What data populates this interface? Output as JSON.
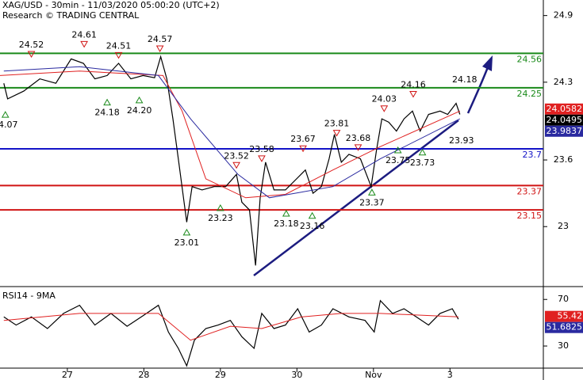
{
  "header": {
    "title": "XAG/USD - 30min - 11/03/2020 05:00:20 (UTC+2)",
    "subtitle": "Research © TRADING CENTRAL"
  },
  "notes": [
    "23.93",
    "24.18"
  ],
  "chart_data": [
    {
      "type": "line",
      "xlim": [
        26.12,
        33.22
      ],
      "ylim": [
        22.46,
        25.04
      ],
      "yticks": [
        24.9,
        24.3,
        23.6,
        23.0
      ],
      "series": [
        {
          "color": "#000000",
          "x": [
            26.17,
            26.22,
            26.43,
            26.64,
            26.85,
            27.05,
            27.21,
            27.36,
            27.52,
            27.67,
            27.83,
            27.99,
            28.14,
            28.22,
            28.3,
            28.38,
            28.45,
            28.56,
            28.63,
            28.76,
            28.92,
            29.07,
            29.21,
            29.28,
            29.38,
            29.46,
            29.52,
            29.59,
            29.7,
            29.85,
            30.01,
            30.11,
            30.21,
            30.32,
            30.42,
            30.49,
            30.58,
            30.68,
            30.83,
            30.97,
            31.04,
            31.11,
            31.2,
            31.3,
            31.4,
            31.51,
            31.61,
            31.72,
            31.87,
            31.97,
            32.08,
            32.13
          ],
          "values": [
            24.29,
            24.15,
            24.22,
            24.33,
            24.29,
            24.51,
            24.47,
            24.33,
            24.36,
            24.47,
            24.33,
            24.36,
            24.34,
            24.53,
            24.33,
            23.97,
            23.61,
            23.04,
            23.36,
            23.33,
            23.36,
            23.36,
            23.47,
            23.22,
            23.15,
            22.65,
            23.26,
            23.58,
            23.33,
            23.33,
            23.44,
            23.51,
            23.3,
            23.36,
            23.61,
            23.83,
            23.58,
            23.65,
            23.61,
            23.36,
            23.69,
            23.97,
            23.94,
            23.86,
            23.97,
            24.04,
            23.86,
            24.01,
            24.04,
            24.01,
            24.11,
            24.01
          ]
        },
        {
          "color": "#e02020",
          "x": [
            26.12,
            27.16,
            28.25,
            28.5,
            28.81,
            29.33,
            29.85,
            30.47,
            31.09,
            32.13
          ],
          "values": [
            24.36,
            24.4,
            24.36,
            24.04,
            23.43,
            23.26,
            23.29,
            23.51,
            23.72,
            24.04
          ]
        },
        {
          "color": "#2a2aa0",
          "x": [
            26.17,
            27.16,
            28.19,
            28.61,
            29.23,
            29.64,
            30.47,
            31.09,
            32.13
          ],
          "values": [
            24.4,
            24.44,
            24.36,
            23.97,
            23.47,
            23.26,
            23.36,
            23.61,
            23.97
          ]
        }
      ],
      "levels": [
        {
          "value": 24.56,
          "color": "#1a8a1a"
        },
        {
          "value": 24.25,
          "color": "#1a8a1a"
        },
        {
          "value": 23.7,
          "color": "#1414c8"
        },
        {
          "value": 23.37,
          "color": "#d01414"
        },
        {
          "value": 23.15,
          "color": "#d01414"
        }
      ],
      "annotations": [
        {
          "x": 26.53,
          "value": 24.52,
          "label": "24.52",
          "marker": "down"
        },
        {
          "x": 27.22,
          "value": 24.61,
          "label": "24.61",
          "marker": "down"
        },
        {
          "x": 27.67,
          "value": 24.51,
          "label": "24.51",
          "marker": "down"
        },
        {
          "x": 28.21,
          "value": 24.57,
          "label": "24.57",
          "marker": "down"
        },
        {
          "x": 29.21,
          "value": 23.52,
          "label": "23.52",
          "marker": "down"
        },
        {
          "x": 29.54,
          "value": 23.58,
          "label": "23.58",
          "marker": "down"
        },
        {
          "x": 30.08,
          "value": 23.67,
          "label": "23.67",
          "marker": "down"
        },
        {
          "x": 30.52,
          "value": 23.81,
          "label": "23.81",
          "marker": "down"
        },
        {
          "x": 30.8,
          "value": 23.68,
          "label": "23.68",
          "marker": "down"
        },
        {
          "x": 31.14,
          "value": 24.03,
          "label": "24.03",
          "marker": "down"
        },
        {
          "x": 31.52,
          "value": 24.16,
          "label": "24.16",
          "marker": "down"
        },
        {
          "x": 26.19,
          "value": 24.07,
          "label": "24.07",
          "marker": "up"
        },
        {
          "x": 27.52,
          "value": 24.18,
          "label": "24.18",
          "marker": "up"
        },
        {
          "x": 27.94,
          "value": 24.2,
          "label": "24.20",
          "marker": "up"
        },
        {
          "x": 28.56,
          "value": 23.01,
          "label": "23.01",
          "marker": "up"
        },
        {
          "x": 29.0,
          "value": 23.23,
          "label": "23.23",
          "marker": "up"
        },
        {
          "x": 29.86,
          "value": 23.18,
          "label": "23.18",
          "marker": "up"
        },
        {
          "x": 30.2,
          "value": 23.16,
          "label": "23.16",
          "marker": "up"
        },
        {
          "x": 30.98,
          "value": 23.37,
          "label": "23.37",
          "marker": "up"
        },
        {
          "x": 31.32,
          "value": 23.75,
          "label": "23.75",
          "marker": "up"
        },
        {
          "x": 31.64,
          "value": 23.73,
          "label": "23.73",
          "marker": "up"
        }
      ],
      "last_prices": [
        {
          "value": 24.0582,
          "color": "#e02020"
        },
        {
          "value": 24.0495,
          "color": "#000000"
        },
        {
          "value": 23.9837,
          "color": "#2a2aa0"
        }
      ]
    },
    {
      "type": "line",
      "title": "RSI14 - 9MA",
      "xlim": [
        26.12,
        33.22
      ],
      "ylim": [
        11,
        79
      ],
      "yticks": [
        70,
        30
      ],
      "xticks": [
        27,
        28,
        29,
        30,
        {
          "value": 31,
          "label": "Nov"
        },
        {
          "value": 32,
          "label": "3"
        }
      ],
      "series": [
        {
          "color": "#000000",
          "x": [
            26.17,
            26.33,
            26.53,
            26.74,
            26.95,
            27.16,
            27.36,
            27.57,
            27.78,
            27.99,
            28.19,
            28.32,
            28.45,
            28.56,
            28.66,
            28.81,
            28.97,
            29.13,
            29.28,
            29.44,
            29.54,
            29.7,
            29.85,
            30.01,
            30.16,
            30.32,
            30.47,
            30.68,
            30.89,
            31.01,
            31.09,
            31.25,
            31.4,
            31.56,
            31.72,
            31.87,
            32.03,
            32.11
          ],
          "values": [
            55,
            48,
            55,
            45,
            58,
            65,
            48,
            58,
            47,
            56,
            65,
            42,
            28,
            13,
            35,
            45,
            48,
            52,
            38,
            28,
            58,
            45,
            48,
            62,
            42,
            48,
            62,
            55,
            52,
            42,
            69,
            58,
            62,
            55,
            48,
            58,
            62,
            53
          ]
        },
        {
          "color": "#e02020",
          "x": [
            26.17,
            27.16,
            28.19,
            28.61,
            29.13,
            29.54,
            30.06,
            30.58,
            31.09,
            32.11
          ],
          "values": [
            52,
            58,
            58,
            35,
            47,
            45,
            55,
            58,
            58,
            55
          ]
        }
      ],
      "last_prices": [
        {
          "value": 55.42,
          "color": "#e02020"
        },
        {
          "value": 51.6825,
          "color": "#2a2aa0"
        }
      ]
    }
  ]
}
